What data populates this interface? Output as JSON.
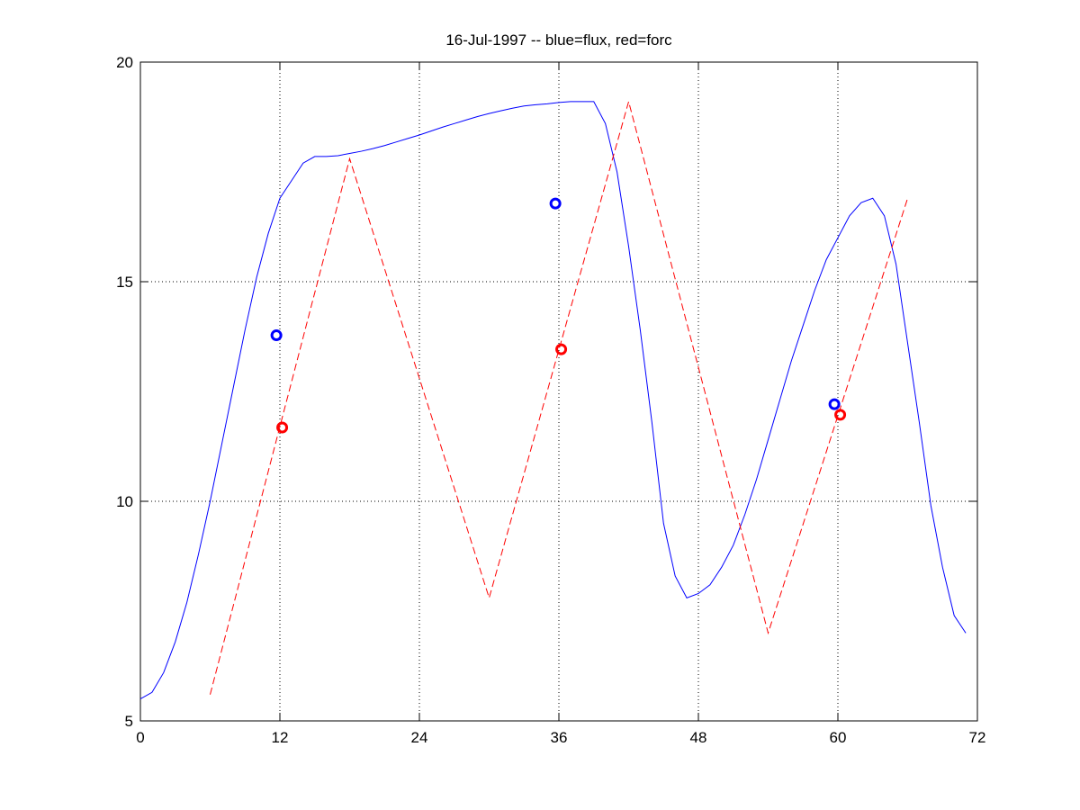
{
  "chart_data": {
    "type": "line",
    "title": "16-Jul-1997 -- blue=flux, red=forc",
    "xlim": [
      0,
      72
    ],
    "xticks": [
      0,
      12,
      24,
      36,
      48,
      60,
      72
    ],
    "ylim": [
      5,
      20
    ],
    "yticks": [
      5,
      10,
      15,
      20
    ],
    "grid": true,
    "series": [
      {
        "color": "#0000ff",
        "style": "solid",
        "x": [
          0,
          1,
          2,
          3,
          4,
          5,
          6,
          7,
          8,
          9,
          10,
          11,
          12,
          13,
          14,
          15,
          16,
          17,
          18,
          19,
          20,
          21,
          22,
          23,
          24,
          25,
          26,
          27,
          28,
          29,
          30,
          31,
          32,
          33,
          34,
          35,
          36,
          37,
          38,
          39,
          40,
          41,
          42,
          43,
          44,
          45,
          46,
          47,
          48,
          49,
          50,
          51,
          52,
          53,
          54,
          55,
          56,
          57,
          58,
          59,
          60,
          61,
          62,
          63,
          64,
          65,
          66,
          67,
          68,
          69,
          70,
          71
        ],
        "values": [
          5.5,
          5.65,
          6.1,
          6.8,
          7.7,
          8.8,
          10.0,
          11.3,
          12.6,
          13.9,
          15.1,
          16.1,
          16.9,
          17.3,
          17.7,
          17.85,
          17.85,
          17.87,
          17.92,
          17.97,
          18.03,
          18.1,
          18.18,
          18.26,
          18.34,
          18.43,
          18.52,
          18.6,
          18.68,
          18.76,
          18.83,
          18.89,
          18.95,
          19.0,
          19.03,
          19.05,
          19.08,
          19.1,
          19.1,
          19.1,
          18.6,
          17.5,
          15.8,
          13.9,
          11.8,
          9.5,
          8.3,
          7.8,
          7.9,
          8.1,
          8.5,
          9.0,
          9.7,
          10.5,
          11.4,
          12.3,
          13.2,
          14.0,
          14.8,
          15.5,
          16.0,
          16.5,
          16.8,
          16.9,
          16.5,
          15.4,
          13.6,
          11.8,
          9.9,
          8.5,
          7.4,
          7.0
        ]
      },
      {
        "color": "#ff0000",
        "style": "dashed",
        "x": [
          6,
          18,
          30,
          42,
          54,
          66
        ],
        "values": [
          5.6,
          17.8,
          7.8,
          19.1,
          7.0,
          16.9
        ]
      },
      {
        "color": "#0000ff",
        "style": "circle",
        "x": [
          11.7,
          35.7,
          59.7
        ],
        "values": [
          13.78,
          16.78,
          12.21
        ]
      },
      {
        "color": "#ff0000",
        "style": "circle",
        "x": [
          12.2,
          36.2,
          60.2
        ],
        "values": [
          11.68,
          13.46,
          11.97
        ]
      }
    ]
  }
}
